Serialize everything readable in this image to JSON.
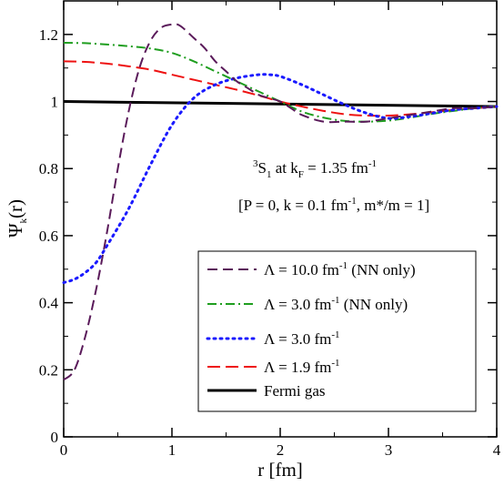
{
  "chart_data": {
    "type": "line",
    "xlabel": "r [fm]",
    "ylabel": "Ψ_k(r)",
    "xlim": [
      0,
      4
    ],
    "ylim": [
      0,
      1.3
    ],
    "x_ticks": [
      "0",
      "1",
      "2",
      "3",
      "4"
    ],
    "y_ticks": [
      "0",
      "0.2",
      "0.4",
      "0.6",
      "0.8",
      "1",
      "1.2"
    ],
    "grid": false,
    "legend_position": "bottom-right",
    "annotations": [
      {
        "text": "3S1 at kF = 1.35 fm-1"
      },
      {
        "text": "[P = 0, k = 0.1 fm-1, m*/m = 1]"
      }
    ],
    "series": [
      {
        "name": "Λ = 10.0 fm-1 (NN only)",
        "color": "#5a1a5a",
        "dash": "long-dash",
        "x": [
          0,
          0.1,
          0.2,
          0.3,
          0.4,
          0.5,
          0.6,
          0.7,
          0.8,
          0.9,
          1.0,
          1.05,
          1.1,
          1.2,
          1.3,
          1.4,
          1.5,
          1.6,
          1.7,
          1.8,
          1.9,
          2.0,
          2.1,
          2.2,
          2.4,
          2.6,
          2.8,
          3.0,
          3.2,
          3.4,
          3.6,
          3.8,
          4.0
        ],
        "y": [
          0.17,
          0.2,
          0.3,
          0.44,
          0.61,
          0.8,
          0.97,
          1.1,
          1.18,
          1.22,
          1.23,
          1.23,
          1.22,
          1.19,
          1.16,
          1.12,
          1.09,
          1.06,
          1.04,
          1.02,
          1.01,
          1.0,
          0.98,
          0.96,
          0.94,
          0.94,
          0.94,
          0.95,
          0.96,
          0.97,
          0.98,
          0.98,
          0.985
        ]
      },
      {
        "name": "Λ = 3.0 fm-1 (NN only)",
        "color": "#1f9e1f",
        "dash": "dash-dot",
        "x": [
          0,
          0.2,
          0.4,
          0.6,
          0.8,
          1.0,
          1.2,
          1.4,
          1.6,
          1.8,
          2.0,
          2.2,
          2.4,
          2.6,
          2.8,
          3.0,
          3.2,
          3.4,
          3.6,
          3.8,
          4.0
        ],
        "y": [
          1.175,
          1.174,
          1.17,
          1.165,
          1.158,
          1.145,
          1.12,
          1.09,
          1.06,
          1.03,
          1.0,
          0.97,
          0.952,
          0.942,
          0.94,
          0.943,
          0.952,
          0.963,
          0.972,
          0.98,
          0.985
        ]
      },
      {
        "name": "Λ = 3.0 fm-1",
        "color": "#1a1aff",
        "dash": "dotted",
        "x": [
          0,
          0.1,
          0.2,
          0.3,
          0.4,
          0.6,
          0.8,
          1.0,
          1.2,
          1.4,
          1.6,
          1.8,
          1.9,
          2.0,
          2.2,
          2.4,
          2.6,
          2.8,
          3.0,
          3.2,
          3.4,
          3.6,
          3.8,
          4.0
        ],
        "y": [
          0.46,
          0.47,
          0.49,
          0.52,
          0.57,
          0.68,
          0.81,
          0.93,
          1.01,
          1.05,
          1.07,
          1.08,
          1.08,
          1.075,
          1.05,
          1.02,
          0.99,
          0.965,
          0.95,
          0.955,
          0.965,
          0.975,
          0.98,
          0.985
        ]
      },
      {
        "name": "Λ = 1.9 fm-1",
        "color": "#ee1111",
        "dash": "dashed",
        "x": [
          0,
          0.2,
          0.4,
          0.6,
          0.8,
          1.0,
          1.2,
          1.4,
          1.6,
          1.8,
          2.0,
          2.2,
          2.4,
          2.6,
          2.8,
          3.0,
          3.2,
          3.4,
          3.6,
          3.8,
          4.0
        ],
        "y": [
          1.12,
          1.118,
          1.113,
          1.105,
          1.095,
          1.08,
          1.065,
          1.05,
          1.035,
          1.018,
          1.0,
          0.985,
          0.972,
          0.962,
          0.958,
          0.958,
          0.962,
          0.968,
          0.975,
          0.98,
          0.985
        ]
      },
      {
        "name": "Fermi gas",
        "color": "#000000",
        "dash": "solid",
        "x": [
          0,
          4
        ],
        "y": [
          1.0,
          0.985
        ]
      }
    ]
  }
}
